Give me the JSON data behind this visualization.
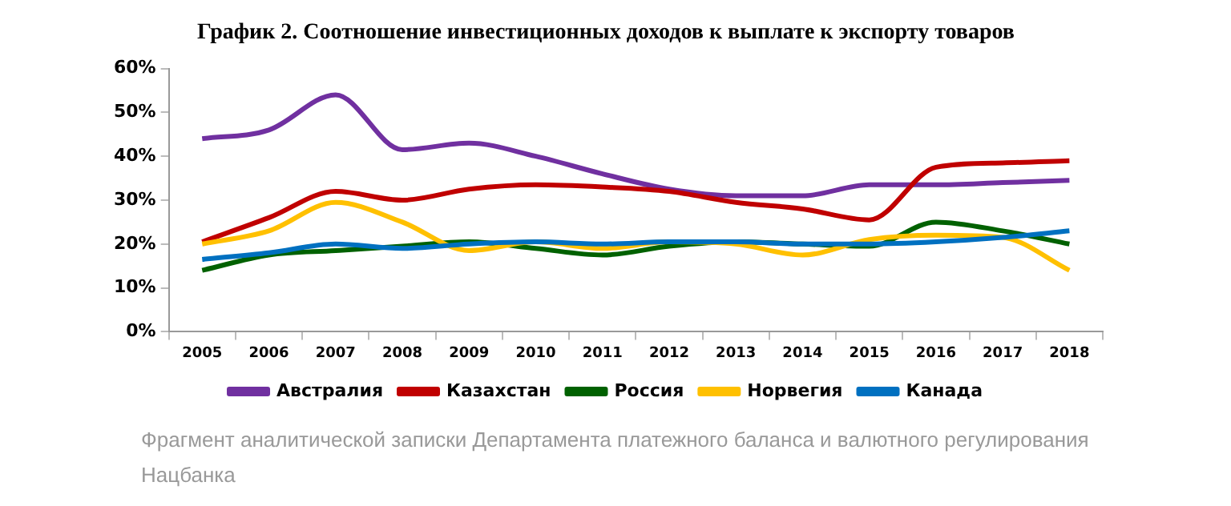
{
  "chart_data": {
    "type": "line",
    "title": "График 2. Соотношение инвестиционных доходов к выплате к экспорту товаров",
    "categories": [
      "2005",
      "2006",
      "2007",
      "2008",
      "2009",
      "2010",
      "2011",
      "2012",
      "2013",
      "2014",
      "2015",
      "2016",
      "2017",
      "2018"
    ],
    "series": [
      {
        "name": "Австралия",
        "color": "#7030a0",
        "values": [
          44,
          46,
          54,
          41.5,
          43,
          40,
          36,
          32.5,
          31,
          31,
          33.5,
          33.5,
          34,
          34.5
        ]
      },
      {
        "name": "Казахстан",
        "color": "#c00000",
        "values": [
          20.5,
          26,
          32,
          30,
          32.5,
          33.5,
          33,
          32,
          29.5,
          28,
          25.5,
          37.5,
          38.5,
          39
        ]
      },
      {
        "name": "Россия",
        "color": "#006100",
        "values": [
          14,
          17.5,
          18.5,
          19.5,
          20.5,
          19,
          17.5,
          19.5,
          20.5,
          20,
          19.5,
          25,
          23,
          20
        ]
      },
      {
        "name": "Норвегия",
        "color": "#ffc000",
        "values": [
          20,
          23,
          29.5,
          25,
          18.5,
          20.5,
          19,
          20.5,
          20,
          17.5,
          21,
          22,
          21.5,
          14
        ]
      },
      {
        "name": "Канада",
        "color": "#0070c0",
        "values": [
          16.5,
          18,
          20,
          19,
          20,
          20.5,
          20,
          20.5,
          20.5,
          20,
          20,
          20.5,
          21.5,
          23
        ]
      }
    ],
    "ylim": [
      0,
      60
    ],
    "yticks": [
      {
        "value": 0,
        "label": "0%"
      },
      {
        "value": 10,
        "label": "10%"
      },
      {
        "value": 20,
        "label": "20%"
      },
      {
        "value": 30,
        "label": "30%"
      },
      {
        "value": 40,
        "label": "40%"
      },
      {
        "value": 50,
        "label": "50%"
      },
      {
        "value": 60,
        "label": "60%"
      }
    ],
    "grid": false,
    "legend": "bottom",
    "marker": "none",
    "line_style": "solid",
    "annotations": [
      "Фрагмент аналитической записки Департамента платежного баланса и валютного регулирования Нацбанка"
    ]
  }
}
